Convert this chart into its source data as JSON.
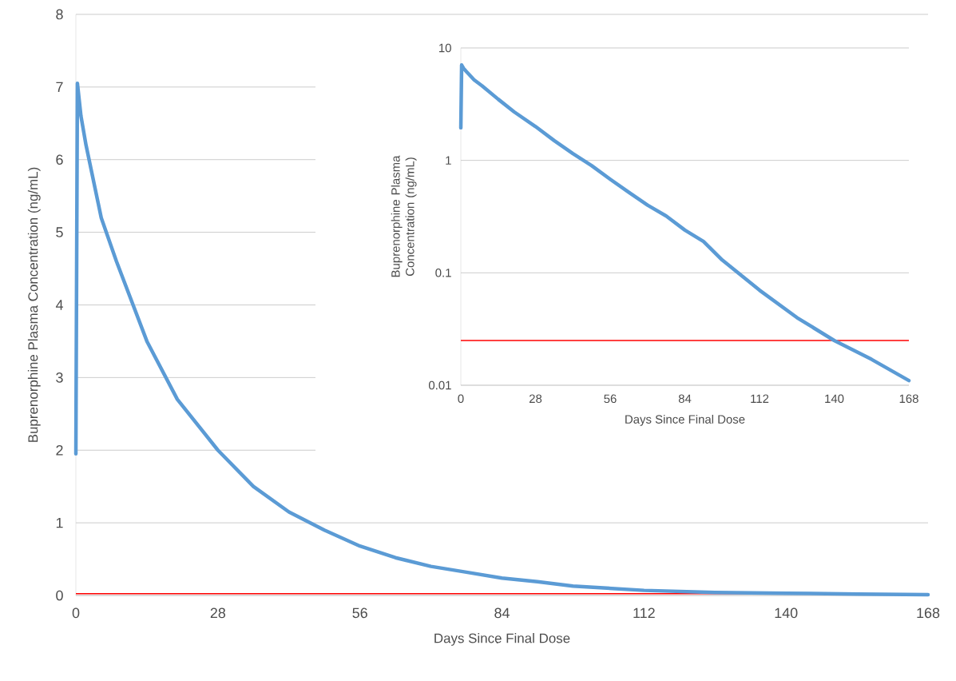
{
  "chart_data": [
    {
      "type": "line",
      "xlabel": "Days Since Final Dose",
      "ylabel": "Buprenorphine Plasma Concentration (ng/mL)",
      "x": [
        0,
        0.3,
        1,
        2,
        5,
        8,
        14,
        20,
        28,
        35,
        42,
        49,
        56,
        63,
        70,
        77,
        84,
        91,
        98,
        112,
        126,
        140,
        154,
        168
      ],
      "series": [
        {
          "color": "#5b9bd5",
          "values": [
            1.95,
            7.05,
            6.6,
            6.2,
            5.2,
            4.6,
            3.5,
            2.7,
            2.0,
            1.5,
            1.15,
            0.9,
            0.68,
            0.52,
            0.4,
            0.32,
            0.24,
            0.19,
            0.13,
            0.07,
            0.04,
            0.03,
            0.02,
            0.01
          ]
        }
      ],
      "xlim": [
        0,
        168
      ],
      "xticks": [
        0,
        28,
        56,
        84,
        112,
        140,
        168
      ],
      "ylim": [
        0,
        8
      ],
      "yticks": [
        0,
        1,
        2,
        3,
        4,
        5,
        6,
        7,
        8
      ],
      "grid": "y",
      "ref_lines": [
        {
          "axis": "y",
          "value": 0.025,
          "color": "#ff0000"
        }
      ]
    },
    {
      "type": "line",
      "xlabel": "Days Since Final Dose",
      "ylabel": "Buprenorphine  Plasma Concentration (ng/mL)",
      "x": [
        0,
        0.3,
        1,
        2,
        5,
        8,
        14,
        20,
        28,
        35,
        42,
        49,
        56,
        63,
        70,
        77,
        84,
        91,
        98,
        112,
        126,
        140,
        154,
        168
      ],
      "series": [
        {
          "color": "#5b9bd5",
          "values": [
            1.95,
            7.05,
            6.6,
            6.2,
            5.2,
            4.6,
            3.5,
            2.7,
            2.0,
            1.5,
            1.15,
            0.9,
            0.68,
            0.52,
            0.4,
            0.32,
            0.24,
            0.19,
            0.13,
            0.07,
            0.04,
            0.025,
            0.017,
            0.011
          ]
        }
      ],
      "xlim": [
        0,
        168
      ],
      "xticks": [
        0,
        28,
        56,
        84,
        112,
        140,
        168
      ],
      "ylim": [
        0.01,
        10
      ],
      "yticks": [
        0.01,
        0.1,
        1,
        10
      ],
      "grid": "y",
      "log": "y",
      "ref_lines": [
        {
          "axis": "y",
          "value": 0.025,
          "color": "#ff0000"
        }
      ]
    }
  ]
}
